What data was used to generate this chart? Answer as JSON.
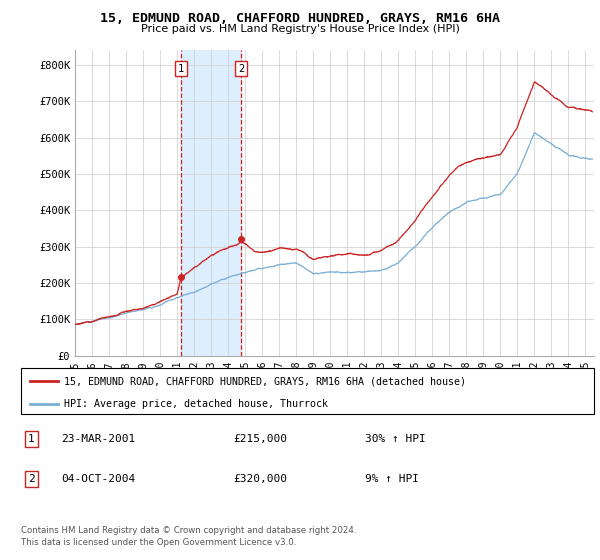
{
  "title": "15, EDMUND ROAD, CHAFFORD HUNDRED, GRAYS, RM16 6HA",
  "subtitle": "Price paid vs. HM Land Registry's House Price Index (HPI)",
  "ylabel_ticks": [
    "£0",
    "£100K",
    "£200K",
    "£300K",
    "£400K",
    "£500K",
    "£600K",
    "£700K",
    "£800K"
  ],
  "ytick_values": [
    0,
    100000,
    200000,
    300000,
    400000,
    500000,
    600000,
    700000,
    800000
  ],
  "ylim": [
    0,
    840000
  ],
  "xlim_start": 1995.0,
  "xlim_end": 2025.5,
  "transaction1": {
    "date_num": 2001.22,
    "price": 215000,
    "label": "1",
    "pct": "30%",
    "date_str": "23-MAR-2001"
  },
  "transaction2": {
    "date_num": 2004.75,
    "price": 320000,
    "label": "2",
    "pct": "9%",
    "date_str": "04-OCT-2004"
  },
  "hpi_color": "#7bafd4",
  "price_color": "#cc2222",
  "vline_color": "#cc2222",
  "shade_color": "#ddeeff",
  "legend_label_price": "15, EDMUND ROAD, CHAFFORD HUNDRED, GRAYS, RM16 6HA (detached house)",
  "legend_label_hpi": "HPI: Average price, detached house, Thurrock",
  "footer1": "Contains HM Land Registry data © Crown copyright and database right 2024.",
  "footer2": "This data is licensed under the Open Government Licence v3.0.",
  "table_rows": [
    {
      "num": "1",
      "date": "23-MAR-2001",
      "price": "£215,000",
      "pct": "30% ↑ HPI"
    },
    {
      "num": "2",
      "date": "04-OCT-2004",
      "price": "£320,000",
      "pct": "9% ↑ HPI"
    }
  ],
  "hpi_keypoints": {
    "years": [
      1995,
      1996,
      1997,
      1998,
      1999,
      2000,
      2001,
      2002,
      2003,
      2004,
      2005,
      2006,
      2007,
      2008,
      2009,
      2010,
      2011,
      2012,
      2013,
      2014,
      2015,
      2016,
      2017,
      2018,
      2019,
      2020,
      2021,
      2022,
      2023,
      2024,
      2025.4
    ],
    "vals": [
      80000,
      88000,
      97000,
      108000,
      118000,
      132000,
      150000,
      170000,
      195000,
      215000,
      225000,
      235000,
      248000,
      248000,
      220000,
      228000,
      232000,
      232000,
      238000,
      260000,
      305000,
      355000,
      400000,
      430000,
      440000,
      450000,
      510000,
      620000,
      590000,
      560000,
      550000
    ]
  },
  "price_keypoints": {
    "years": [
      1995,
      1996,
      1997,
      1998,
      1999,
      2000,
      2001.0,
      2001.22,
      2002,
      2003,
      2004.5,
      2004.75,
      2005.5,
      2006,
      2007,
      2008,
      2009,
      2010,
      2011,
      2012,
      2013,
      2014,
      2015,
      2016,
      2017,
      2018,
      2019,
      2020,
      2021,
      2022,
      2023,
      2024,
      2025.4
    ],
    "vals": [
      88000,
      97000,
      108000,
      119000,
      130000,
      148000,
      170000,
      215000,
      248000,
      280000,
      310000,
      320000,
      290000,
      285000,
      300000,
      300000,
      268000,
      278000,
      282000,
      282000,
      290000,
      318000,
      372000,
      432000,
      488000,
      524000,
      536000,
      548000,
      622000,
      755000,
      718000,
      682000,
      670000
    ]
  }
}
